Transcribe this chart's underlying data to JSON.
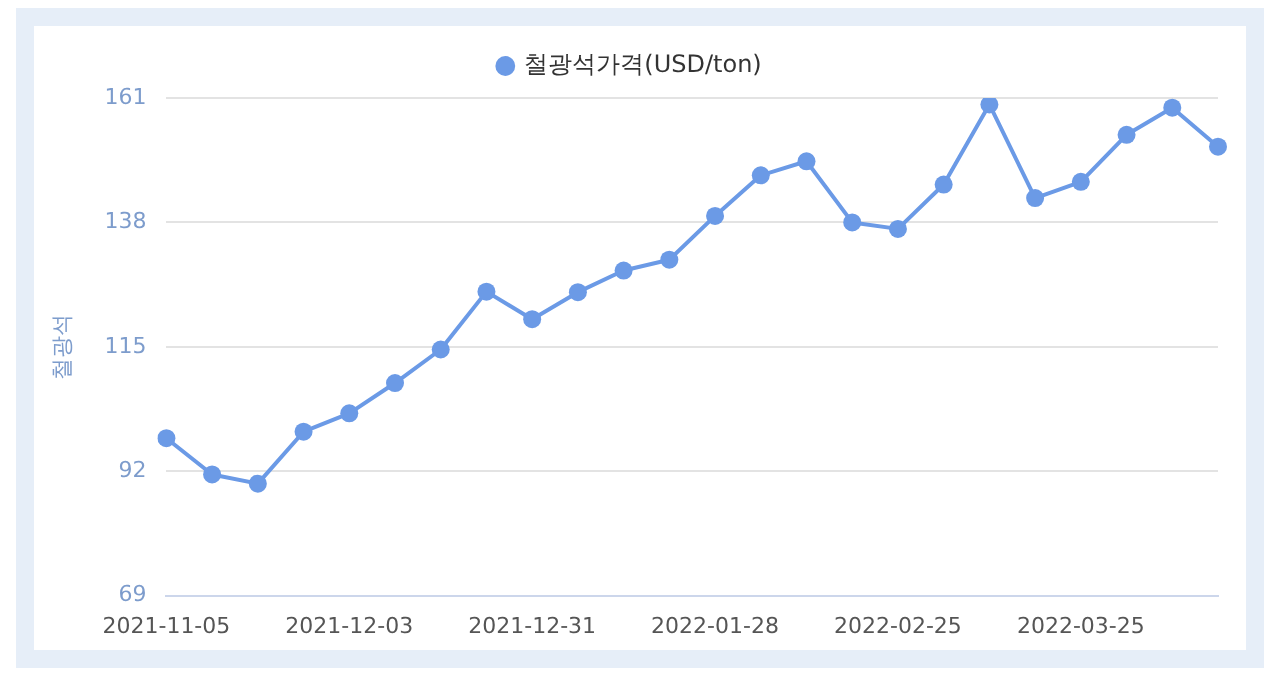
{
  "chart_data": {
    "type": "line",
    "ylabel": "철광석",
    "categories": [
      "2021-11-05",
      null,
      null,
      null,
      "2021-12-03",
      null,
      null,
      null,
      "2021-12-31",
      null,
      null,
      null,
      "2022-01-28",
      null,
      null,
      null,
      "2022-02-25",
      null,
      null,
      null,
      "2022-03-25",
      null,
      null,
      null
    ],
    "series": [
      {
        "name": "철광석가격(USD/ton)",
        "color": "#6b9ae6",
        "values": [
          98.1,
          91.4,
          89.7,
          99.3,
          102.7,
          108.3,
          114.5,
          125.2,
          120.1,
          125.1,
          129.1,
          131.1,
          139.2,
          146.7,
          149.3,
          138.0,
          136.8,
          145.0,
          159.8,
          142.5,
          145.5,
          154.2,
          159.2,
          152.0
        ]
      }
    ],
    "ylim": [
      69,
      161
    ],
    "yticks": [
      69,
      92,
      115,
      138,
      161
    ],
    "grid": "y",
    "legend": "top",
    "marker": "circle",
    "line_style": "solid"
  }
}
